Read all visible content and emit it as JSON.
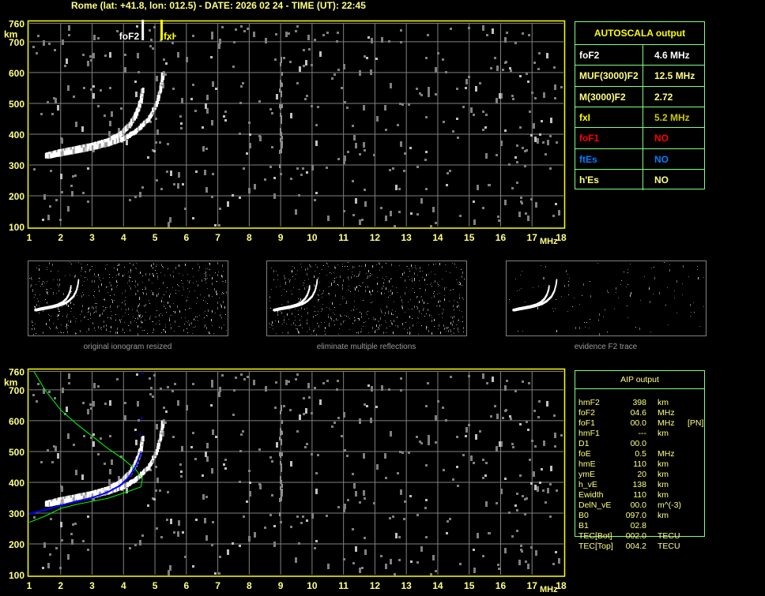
{
  "header": {
    "title": "Rome (lat: +41.8, lon: 012.5) - DATE: 2026 02 24 - TIME (UT): 22:45"
  },
  "colors": {
    "frame": "#ffff00",
    "grid": "#808080",
    "axis_text": "#ffff80",
    "box_border": "#80ff80",
    "trace": "#ffffff",
    "noise": "#808080",
    "profile_blue": "#0000ff",
    "profile_green": "#00ff00"
  },
  "markers": {
    "foF2": {
      "label": "foF2",
      "freq": 4.6
    },
    "fxI": {
      "label": "fxI",
      "freq": 5.2
    }
  },
  "chart_data": [
    {
      "type": "scatter",
      "xlabel": "MHz",
      "ylabel": "km",
      "xlim": [
        1,
        18
      ],
      "ylim": [
        100,
        760
      ],
      "xticks": [
        "1",
        "2",
        "3",
        "4",
        "5",
        "6",
        "7",
        "8",
        "9",
        "10",
        "11",
        "12",
        "13",
        "14",
        "15",
        "16",
        "17",
        "18"
      ],
      "yticks": [
        "760",
        "700",
        "600",
        "500",
        "400",
        "300",
        "200",
        "100"
      ],
      "grid": true,
      "o_trace": [
        [
          1.5,
          330
        ],
        [
          2,
          343
        ],
        [
          2.5,
          353
        ],
        [
          3,
          363
        ],
        [
          3.5,
          378
        ],
        [
          3.9,
          400
        ],
        [
          4.2,
          430
        ],
        [
          4.4,
          465
        ],
        [
          4.55,
          510
        ],
        [
          4.6,
          545
        ]
      ],
      "x_trace": [
        [
          1.6,
          328
        ],
        [
          2,
          336
        ],
        [
          2.5,
          345
        ],
        [
          3,
          355
        ],
        [
          3.5,
          368
        ],
        [
          4,
          385
        ],
        [
          4.4,
          410
        ],
        [
          4.8,
          450
        ],
        [
          5.05,
          500
        ],
        [
          5.2,
          560
        ],
        [
          5.25,
          600
        ]
      ]
    },
    {
      "type": "line",
      "xlabel": "MHz",
      "ylabel": "km",
      "xlim": [
        1,
        18
      ],
      "ylim": [
        100,
        760
      ],
      "xticks": [
        "1",
        "2",
        "3",
        "4",
        "5",
        "6",
        "7",
        "8",
        "9",
        "10",
        "11",
        "12",
        "13",
        "14",
        "15",
        "16",
        "17",
        "18"
      ],
      "yticks": [
        "760",
        "700",
        "600",
        "500",
        "400",
        "300",
        "200",
        "100"
      ],
      "grid": true,
      "blue_profile": [
        [
          1,
          298
        ],
        [
          1.5,
          310
        ],
        [
          2,
          325
        ],
        [
          2.5,
          338
        ],
        [
          3,
          350
        ],
        [
          3.5,
          368
        ],
        [
          3.9,
          390
        ],
        [
          4.2,
          420
        ],
        [
          4.4,
          455
        ],
        [
          4.55,
          495
        ],
        [
          4.55,
          555
        ],
        [
          4.6,
          608
        ],
        [
          4.62,
          755
        ]
      ],
      "green_profile": [
        [
          1.15,
          760
        ],
        [
          1.5,
          700
        ],
        [
          2,
          635
        ],
        [
          2.5,
          590
        ],
        [
          3,
          550
        ],
        [
          3.5,
          510
        ],
        [
          4,
          475
        ],
        [
          4.4,
          440
        ],
        [
          4.6,
          410
        ],
        [
          4.55,
          385
        ],
        [
          4.2,
          372
        ],
        [
          3.5,
          348
        ],
        [
          3,
          338
        ],
        [
          2.5,
          328
        ],
        [
          2,
          315
        ],
        [
          1.5,
          290
        ],
        [
          1,
          270
        ]
      ]
    }
  ],
  "thumbnails": [
    {
      "caption": "original ionogram resized"
    },
    {
      "caption": "eliminate multiple reflections"
    },
    {
      "caption": "evidence F2 trace"
    }
  ],
  "autoscala": {
    "title": "AUTOSCALA output",
    "rows": [
      {
        "label": "foF2",
        "value": "4.6 MHz",
        "label_color": "#ffffff",
        "value_color": "#ffffff"
      },
      {
        "label": "MUF(3000)F2",
        "value": "12.5 MHz",
        "label_color": "#ffff80",
        "value_color": "#ffff80"
      },
      {
        "label": "M(3000)F2",
        "value": "2.72",
        "label_color": "#ffff80",
        "value_color": "#ffff80"
      },
      {
        "label": "fxI",
        "value": "5.2 MHz",
        "label_color": "#ffff00",
        "value_color": "#c8c800"
      },
      {
        "label": "foF1",
        "value": "NO",
        "label_color": "#ff0000",
        "value_color": "#ff0000"
      },
      {
        "label": "ftEs",
        "value": "NO",
        "label_color": "#0080ff",
        "value_color": "#0080ff"
      },
      {
        "label": "h'Es",
        "value": "NO",
        "label_color": "#ffff80",
        "value_color": "#ffff80"
      }
    ]
  },
  "aip": {
    "title": "AIP output",
    "rows": [
      {
        "name": "hmF2",
        "value": "398",
        "unit": "km",
        "extra": ""
      },
      {
        "name": "foF2",
        "value": "04.6",
        "unit": "MHz",
        "extra": ""
      },
      {
        "name": "foF1",
        "value": "00.0",
        "unit": "MHz",
        "extra": "[PN]"
      },
      {
        "name": "hmF1",
        "value": "---",
        "unit": "km",
        "extra": ""
      },
      {
        "name": "D1",
        "value": "00.0",
        "unit": "",
        "extra": ""
      },
      {
        "name": "foE",
        "value": "0.5",
        "unit": "MHz",
        "extra": ""
      },
      {
        "name": "hmE",
        "value": "110",
        "unit": "km",
        "extra": ""
      },
      {
        "name": "ymE",
        "value": "20",
        "unit": "km",
        "extra": ""
      },
      {
        "name": "h_vE",
        "value": "138",
        "unit": "km",
        "extra": ""
      },
      {
        "name": "Ewidth",
        "value": "110",
        "unit": "km",
        "extra": ""
      },
      {
        "name": "DelN_vE",
        "value": "00.0",
        "unit": "m^(-3)",
        "extra": ""
      },
      {
        "name": "B0",
        "value": "097.0",
        "unit": "km",
        "extra": ""
      },
      {
        "name": "B1",
        "value": "02.8",
        "unit": "",
        "extra": ""
      },
      {
        "name": "TEC[Bot]",
        "value": "002.0",
        "unit": "TECU",
        "extra": ""
      },
      {
        "name": "TEC[Top]",
        "value": "004.2",
        "unit": "TECU",
        "extra": ""
      }
    ]
  }
}
